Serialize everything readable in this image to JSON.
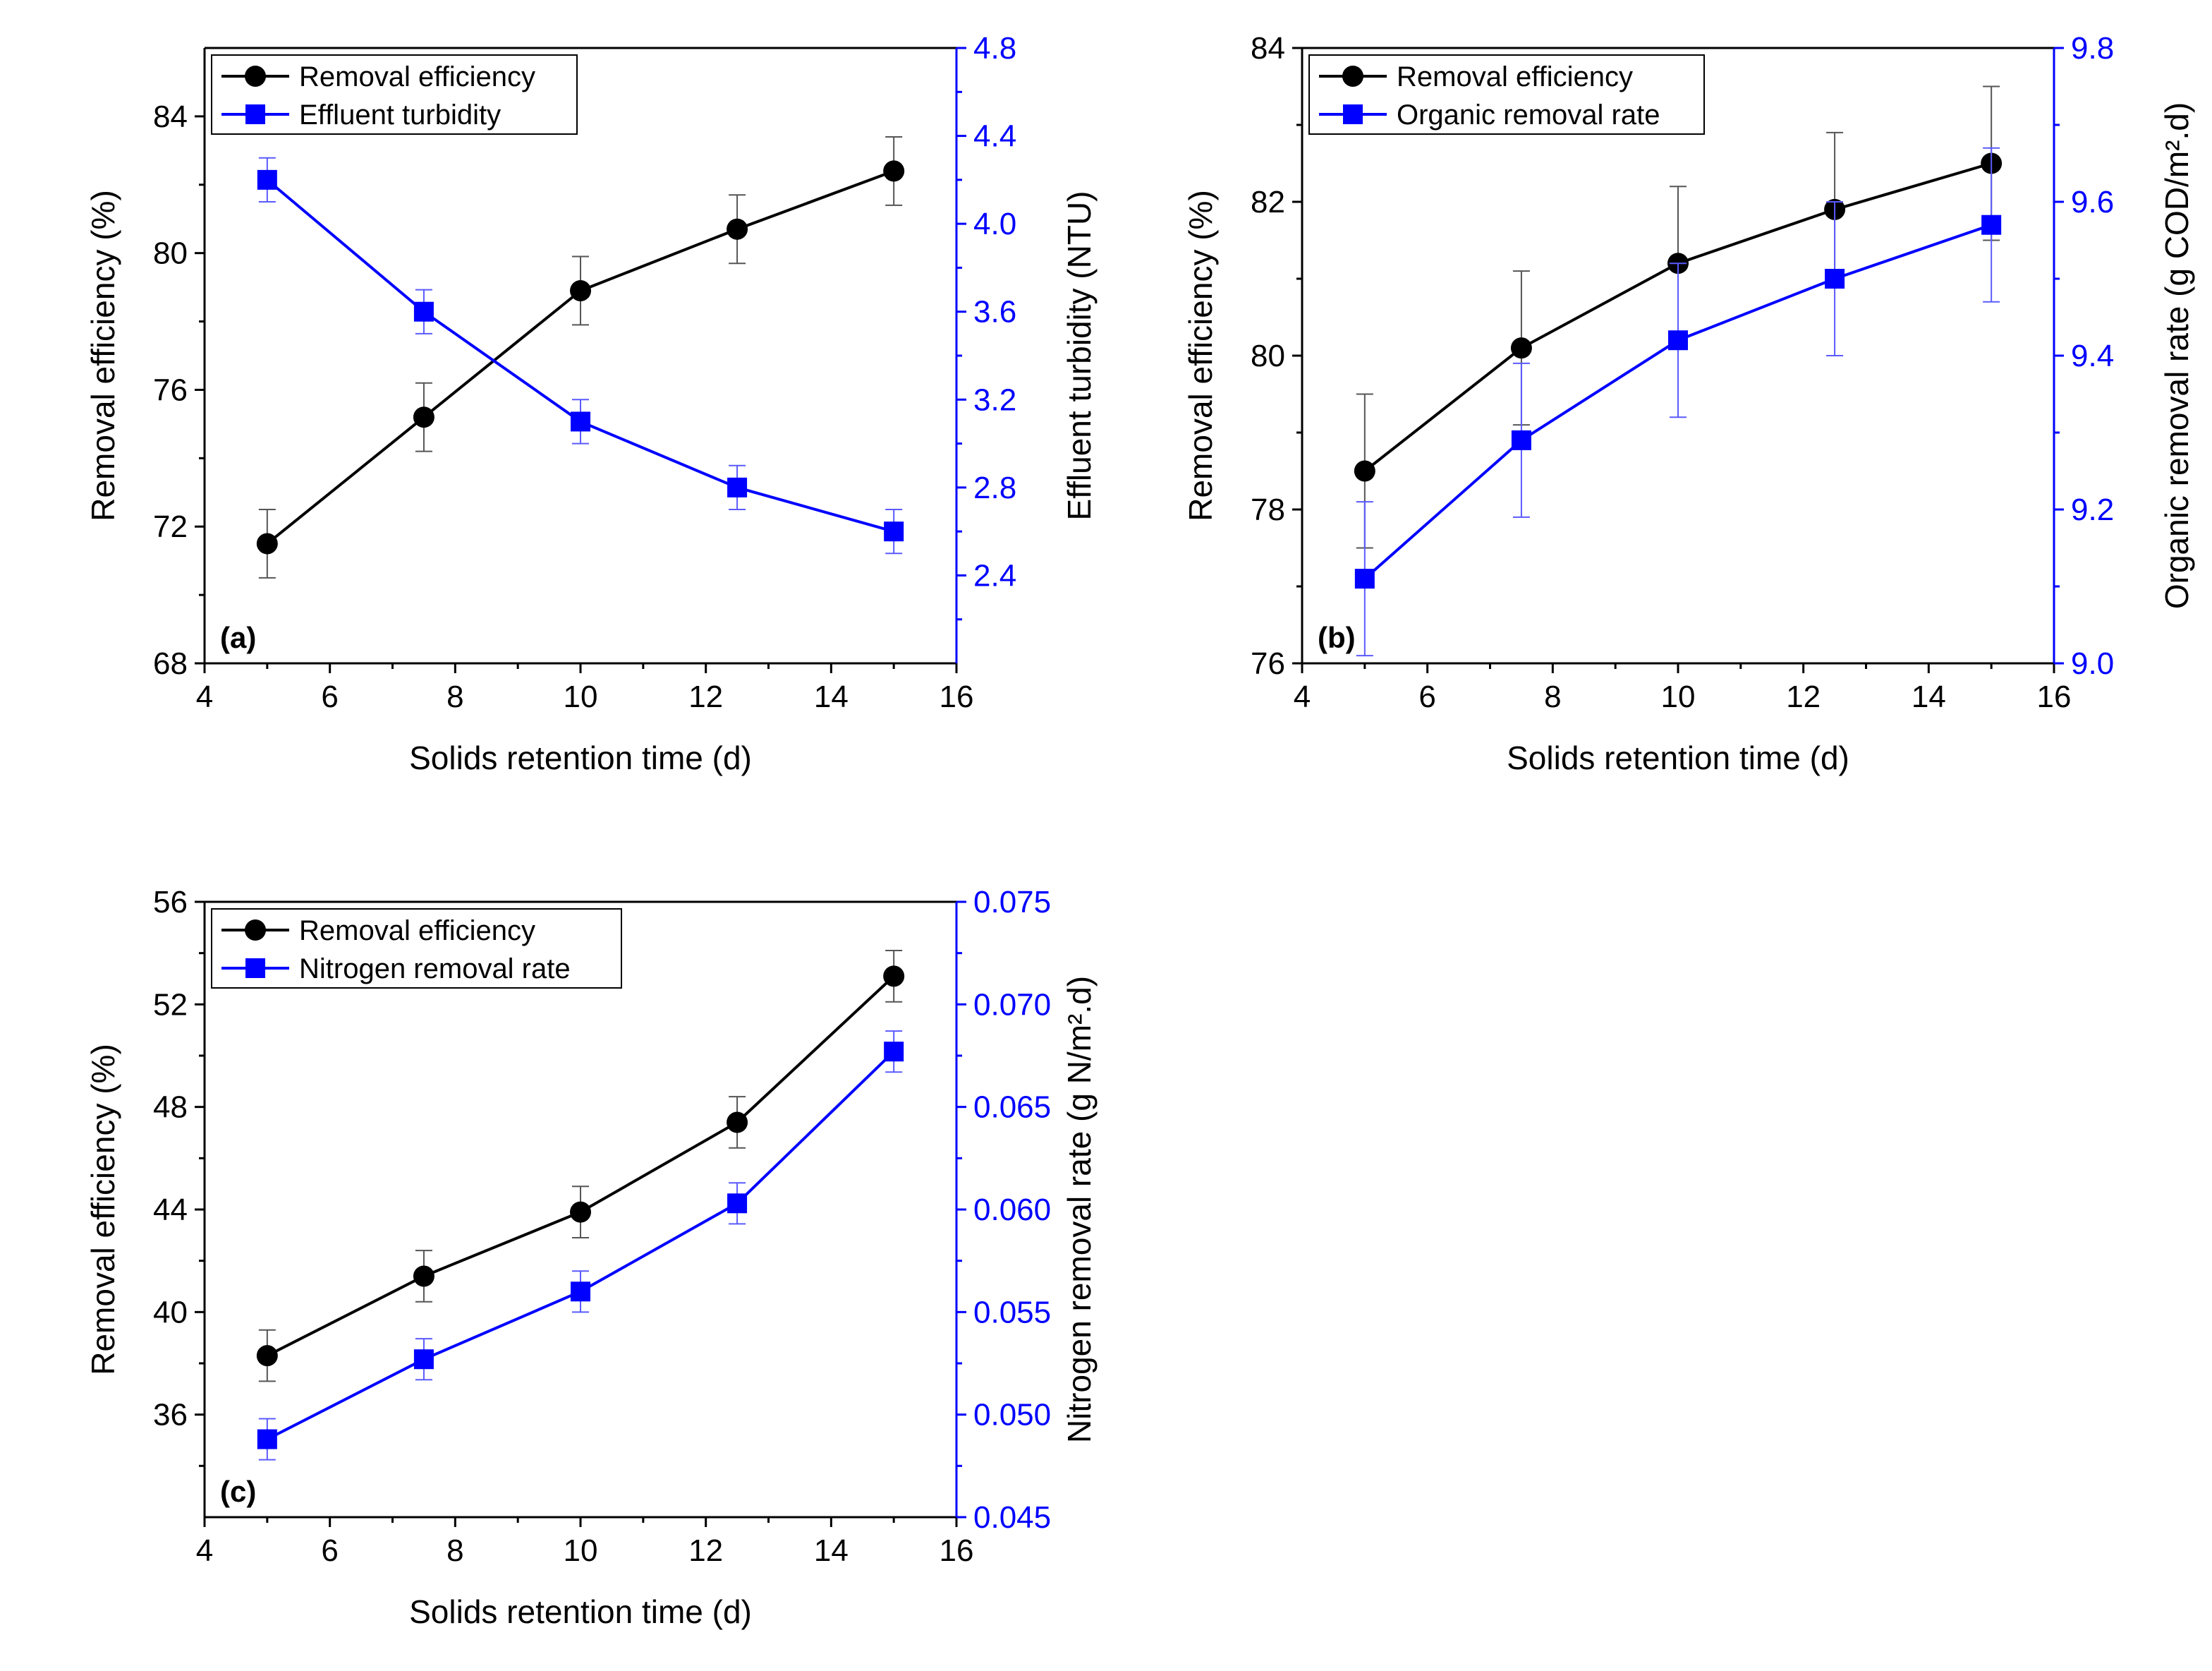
{
  "chart_data": [
    {
      "type": "line",
      "panel_label": "(a)",
      "xlabel": "Solids retention time (d)",
      "ylabel": "Removal efficiency (%)",
      "y2label": "Effluent turbidity (NTU)",
      "xlim": [
        4,
        16
      ],
      "ylim": [
        68,
        86
      ],
      "y2lim": [
        2.0,
        4.8
      ],
      "xticks": [
        4,
        6,
        8,
        10,
        12,
        14,
        16
      ],
      "yticks": [
        68,
        72,
        76,
        80,
        84
      ],
      "y2ticks": [
        "2.4",
        "2.8",
        "3.2",
        "3.6",
        "4.0",
        "4.4",
        "4.8"
      ],
      "x": [
        5,
        7.5,
        10,
        12.5,
        15
      ],
      "legend_position": "top-left",
      "series": [
        {
          "name": "Removal efficiency",
          "axis": "left",
          "marker": "circle",
          "color": "#000000",
          "values": [
            71.5,
            75.2,
            78.9,
            80.7,
            82.4
          ],
          "errors": [
            1.0,
            1.0,
            1.0,
            1.0,
            1.0
          ]
        },
        {
          "name": "Effluent turbidity",
          "axis": "right",
          "marker": "square",
          "color": "#0000ff",
          "values": [
            4.2,
            3.6,
            3.1,
            2.8,
            2.6
          ],
          "errors": [
            0.1,
            0.1,
            0.1,
            0.1,
            0.1
          ]
        }
      ]
    },
    {
      "type": "line",
      "panel_label": "(b)",
      "xlabel": "Solids retention time (d)",
      "ylabel": "Removal efficiency (%)",
      "y2label": "Organic removal rate (g COD/m².d)",
      "xlim": [
        4,
        16
      ],
      "ylim": [
        76,
        84
      ],
      "y2lim": [
        9.0,
        9.8
      ],
      "xticks": [
        4,
        6,
        8,
        10,
        12,
        14,
        16
      ],
      "yticks": [
        76,
        78,
        80,
        82,
        84
      ],
      "y2ticks": [
        "9.0",
        "9.2",
        "9.4",
        "9.6",
        "9.8"
      ],
      "x": [
        5,
        7.5,
        10,
        12.5,
        15
      ],
      "legend_position": "top-left",
      "series": [
        {
          "name": "Removal efficiency",
          "axis": "left",
          "marker": "circle",
          "color": "#000000",
          "values": [
            78.5,
            80.1,
            81.2,
            81.9,
            82.5
          ],
          "errors": [
            1.0,
            1.0,
            1.0,
            1.0,
            1.0
          ]
        },
        {
          "name": "Organic removal rate",
          "axis": "right",
          "marker": "square",
          "color": "#0000ff",
          "values": [
            9.11,
            9.29,
            9.42,
            9.5,
            9.57
          ],
          "errors": [
            0.1,
            0.1,
            0.1,
            0.1,
            0.1
          ]
        }
      ]
    },
    {
      "type": "line",
      "panel_label": "(c)",
      "xlabel": "Solids retention time (d)",
      "ylabel": "Removal efficiency (%)",
      "y2label": "Nitrogen removal rate (g N/m².d)",
      "xlim": [
        4,
        16
      ],
      "ylim": [
        32,
        56
      ],
      "y2lim": [
        0.045,
        0.075
      ],
      "xticks": [
        4,
        6,
        8,
        10,
        12,
        14,
        16
      ],
      "yticks": [
        36,
        40,
        44,
        48,
        52,
        56
      ],
      "y2ticks": [
        "0.045",
        "0.050",
        "0.055",
        "0.060",
        "0.065",
        "0.070",
        "0.075"
      ],
      "x": [
        5,
        7.5,
        10,
        12.5,
        15
      ],
      "legend_position": "top-left",
      "series": [
        {
          "name": "Removal efficiency",
          "axis": "left",
          "marker": "circle",
          "color": "#000000",
          "values": [
            38.3,
            41.4,
            43.9,
            47.4,
            53.1
          ],
          "errors": [
            1.0,
            1.0,
            1.0,
            1.0,
            1.0
          ]
        },
        {
          "name": "Nitrogen removal rate",
          "axis": "right",
          "marker": "square",
          "color": "#0000ff",
          "values": [
            0.0488,
            0.0527,
            0.056,
            0.0603,
            0.0677
          ],
          "errors": [
            0.001,
            0.001,
            0.001,
            0.001,
            0.001
          ]
        }
      ]
    }
  ]
}
